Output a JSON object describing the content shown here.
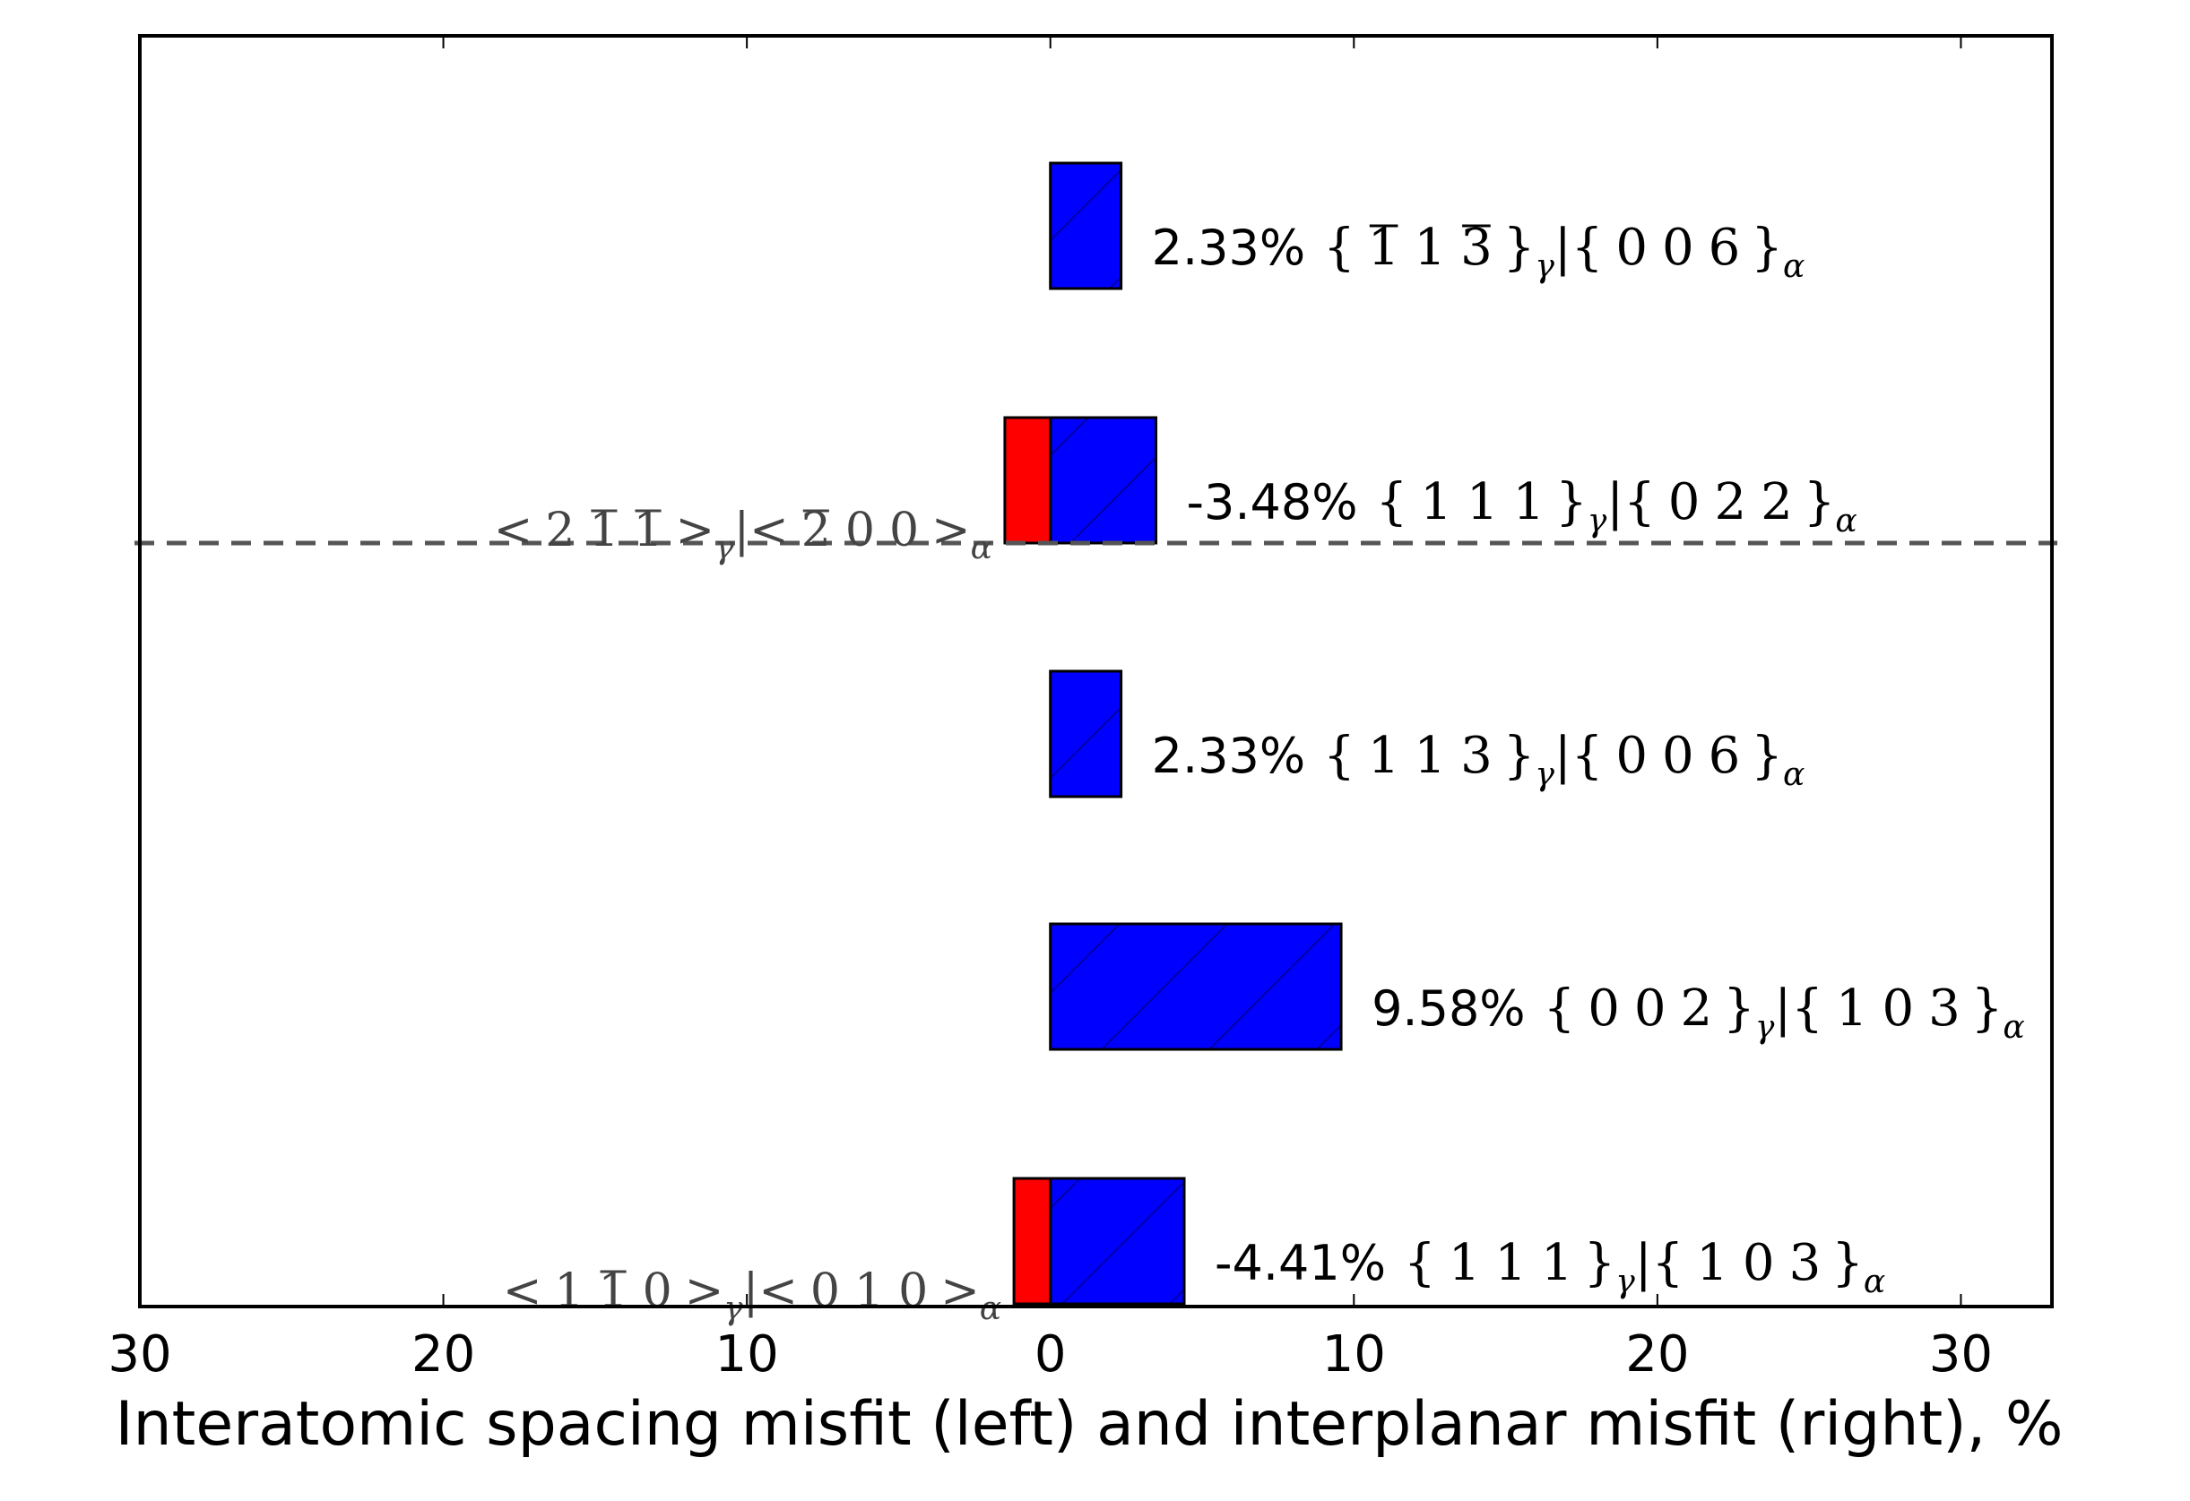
{
  "chart_data": {
    "type": "bar",
    "orientation": "horizontal",
    "xlabel": "Interatomic spacing misfit (left) and interplanar misfit (right), %",
    "xlim": [
      -30,
      33
    ],
    "x_ticks": [
      -30,
      -20,
      -10,
      0,
      10,
      20,
      30
    ],
    "x_tick_labels": [
      "30",
      "20",
      "10",
      "0",
      "10",
      "20",
      "30"
    ],
    "grid": false,
    "colors": {
      "interplanar": "#0000ff",
      "interatomic": "#ff0000",
      "reference_line": "#555555"
    },
    "reference_line_y_category_index": 1,
    "rows": [
      {
        "interplanar_misfit": 2.33,
        "label_pct": "2.33%",
        "plane_gamma": [
          [
            "1",
            true
          ],
          [
            "1",
            false
          ],
          [
            "3",
            true
          ]
        ],
        "plane_alpha": [
          [
            "0",
            false
          ],
          [
            "0",
            false
          ],
          [
            "6",
            false
          ]
        ],
        "interatomic_misfit": null,
        "dir_gamma": null,
        "dir_alpha": null
      },
      {
        "interplanar_misfit": 3.48,
        "label_pct": "-3.48%",
        "plane_gamma": [
          [
            "1",
            false
          ],
          [
            "1",
            false
          ],
          [
            "1",
            false
          ]
        ],
        "plane_alpha": [
          [
            "0",
            false
          ],
          [
            "2",
            false
          ],
          [
            "2",
            false
          ]
        ],
        "interatomic_misfit": -1.5,
        "dir_gamma": [
          [
            "2",
            false
          ],
          [
            "1",
            true
          ],
          [
            "1",
            true
          ]
        ],
        "dir_alpha": [
          [
            "2",
            true
          ],
          [
            "0",
            false
          ],
          [
            "0",
            false
          ]
        ]
      },
      {
        "interplanar_misfit": 2.33,
        "label_pct": "2.33%",
        "plane_gamma": [
          [
            "1",
            false
          ],
          [
            "1",
            false
          ],
          [
            "3",
            false
          ]
        ],
        "plane_alpha": [
          [
            "0",
            false
          ],
          [
            "0",
            false
          ],
          [
            "6",
            false
          ]
        ],
        "interatomic_misfit": null,
        "dir_gamma": null,
        "dir_alpha": null
      },
      {
        "interplanar_misfit": 9.58,
        "label_pct": "9.58%",
        "plane_gamma": [
          [
            "0",
            false
          ],
          [
            "0",
            false
          ],
          [
            "2",
            false
          ]
        ],
        "plane_alpha": [
          [
            "1",
            false
          ],
          [
            "0",
            false
          ],
          [
            "3",
            false
          ]
        ],
        "interatomic_misfit": null,
        "dir_gamma": null,
        "dir_alpha": null
      },
      {
        "interplanar_misfit": 4.41,
        "label_pct": "-4.41%",
        "plane_gamma": [
          [
            "1",
            false
          ],
          [
            "1",
            false
          ],
          [
            "1",
            false
          ]
        ],
        "plane_alpha": [
          [
            "1",
            false
          ],
          [
            "0",
            false
          ],
          [
            "3",
            false
          ]
        ],
        "interatomic_misfit": -1.2,
        "dir_gamma": [
          [
            "1",
            false
          ],
          [
            "1",
            true
          ],
          [
            "0",
            false
          ]
        ],
        "dir_alpha": [
          [
            "0",
            false
          ],
          [
            "1",
            false
          ],
          [
            "0",
            false
          ]
        ]
      }
    ],
    "symbols": {
      "gamma": "γ",
      "alpha": "α",
      "sep": "|",
      "brace_open": "{",
      "brace_close": "}",
      "angle_open": "<",
      "angle_close": ">"
    }
  }
}
